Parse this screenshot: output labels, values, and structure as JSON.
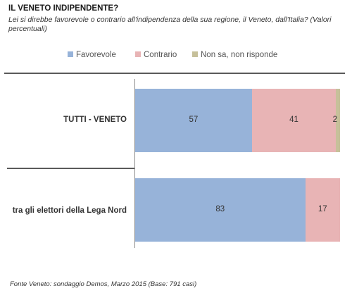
{
  "header": {
    "title": "IL VENETO INDIPENDENTE?",
    "subtitle": "Lei si direbbe favorevole o contrario all'indipendenza della sua regione, il Veneto, dall'Italia? (Valori percentuali)"
  },
  "colors": {
    "favorevole": "#97b3d9",
    "contrario": "#e8b4b5",
    "non_sa": "#c6c09a"
  },
  "chart_data": {
    "type": "bar",
    "orientation": "horizontal",
    "stacked": true,
    "categories": [
      "TUTTI - VENETO",
      "tra gli elettori della Lega Nord"
    ],
    "series": [
      {
        "name": "Favorevole",
        "values": [
          57,
          83
        ]
      },
      {
        "name": "Contrario",
        "values": [
          41,
          17
        ]
      },
      {
        "name": "Non sa, non risponde",
        "values": [
          2,
          0
        ]
      }
    ],
    "xlim": [
      0,
      100
    ],
    "legend": "top-center",
    "grid": false
  },
  "footer": {
    "source": "Fonte Veneto: sondaggio Demos, Marzo 2015 (Base: 791 casi)"
  }
}
